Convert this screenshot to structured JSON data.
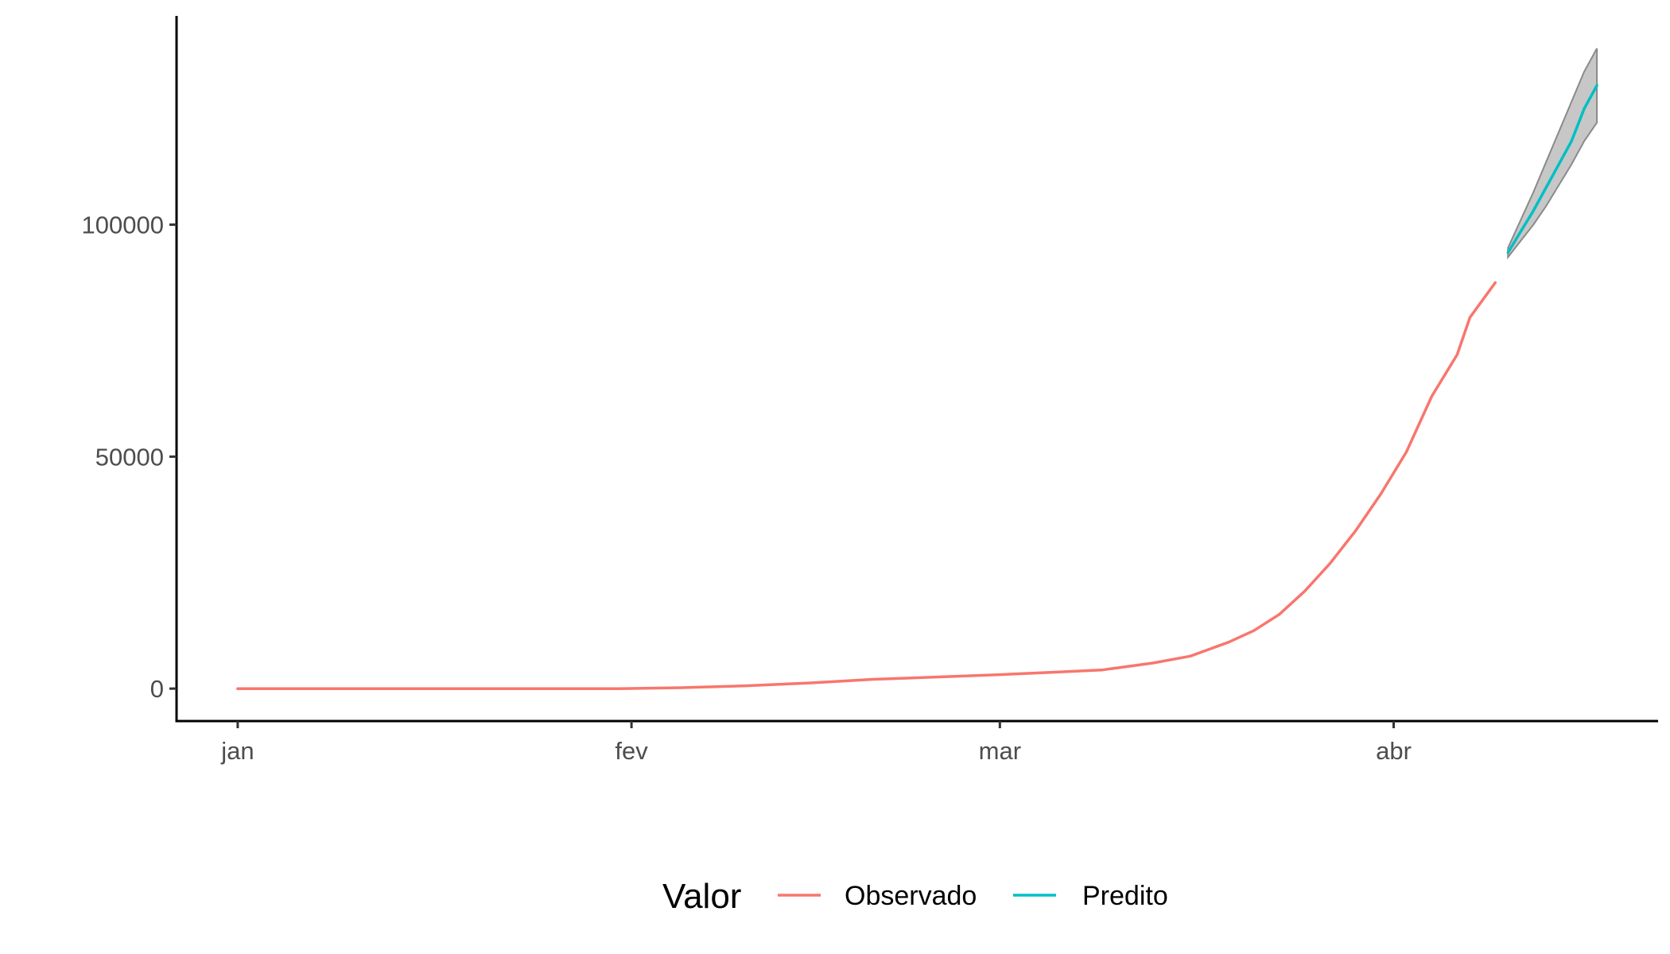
{
  "chart_data": {
    "type": "line",
    "title": "",
    "xlabel": "",
    "ylabel": "",
    "x_axis": {
      "scale": "date",
      "range": [
        "2020-01-01",
        "2020-04-17"
      ],
      "ticks": [
        {
          "value": "2020-01-01",
          "label": "jan"
        },
        {
          "value": "2020-02-01",
          "label": "fev"
        },
        {
          "value": "2020-03-01",
          "label": "mar"
        },
        {
          "value": "2020-04-01",
          "label": "abr"
        }
      ]
    },
    "y_axis": {
      "range": [
        -7000,
        145000
      ],
      "ticks": [
        {
          "value": 0,
          "label": "0"
        },
        {
          "value": 50000,
          "label": "50000"
        },
        {
          "value": 100000,
          "label": "100000"
        }
      ]
    },
    "grid": false,
    "legend": {
      "position": "bottom",
      "title": "Valor",
      "entries": [
        {
          "label": "Observado",
          "color": "#F8766D"
        },
        {
          "label": "Predito",
          "color": "#00BFC4"
        }
      ]
    },
    "series": [
      {
        "name": "Observado",
        "color": "#F8766D",
        "points": [
          {
            "x": "2020-01-01",
            "y": 0
          },
          {
            "x": "2020-01-10",
            "y": 0
          },
          {
            "x": "2020-01-20",
            "y": 0
          },
          {
            "x": "2020-01-31",
            "y": 0
          },
          {
            "x": "2020-02-05",
            "y": 200
          },
          {
            "x": "2020-02-10",
            "y": 600
          },
          {
            "x": "2020-02-15",
            "y": 1200
          },
          {
            "x": "2020-02-20",
            "y": 2000
          },
          {
            "x": "2020-02-25",
            "y": 2500
          },
          {
            "x": "2020-03-01",
            "y": 3000
          },
          {
            "x": "2020-03-05",
            "y": 3500
          },
          {
            "x": "2020-03-09",
            "y": 4000
          },
          {
            "x": "2020-03-13",
            "y": 5500
          },
          {
            "x": "2020-03-16",
            "y": 7000
          },
          {
            "x": "2020-03-19",
            "y": 10000
          },
          {
            "x": "2020-03-21",
            "y": 12500
          },
          {
            "x": "2020-03-23",
            "y": 16000
          },
          {
            "x": "2020-03-25",
            "y": 21000
          },
          {
            "x": "2020-03-27",
            "y": 27000
          },
          {
            "x": "2020-03-29",
            "y": 34000
          },
          {
            "x": "2020-03-31",
            "y": 42000
          },
          {
            "x": "2020-04-02",
            "y": 51000
          },
          {
            "x": "2020-04-04",
            "y": 63000
          },
          {
            "x": "2020-04-06",
            "y": 72000
          },
          {
            "x": "2020-04-07",
            "y": 80000
          },
          {
            "x": "2020-04-09",
            "y": 87500
          }
        ]
      },
      {
        "name": "Predito",
        "color": "#00BFC4",
        "points": [
          {
            "x": "2020-04-10",
            "y": 94000
          },
          {
            "x": "2020-04-11",
            "y": 98500
          },
          {
            "x": "2020-04-12",
            "y": 103000
          },
          {
            "x": "2020-04-13",
            "y": 108000
          },
          {
            "x": "2020-04-14",
            "y": 113000
          },
          {
            "x": "2020-04-15",
            "y": 118000
          },
          {
            "x": "2020-04-16",
            "y": 125000
          },
          {
            "x": "2020-04-17",
            "y": 130000
          }
        ],
        "interval": {
          "lower": [
            93000,
            96500,
            100000,
            104000,
            108500,
            113000,
            118000,
            122000
          ],
          "upper": [
            95000,
            101000,
            107000,
            113500,
            120000,
            126500,
            133000,
            138000
          ]
        }
      }
    ]
  }
}
